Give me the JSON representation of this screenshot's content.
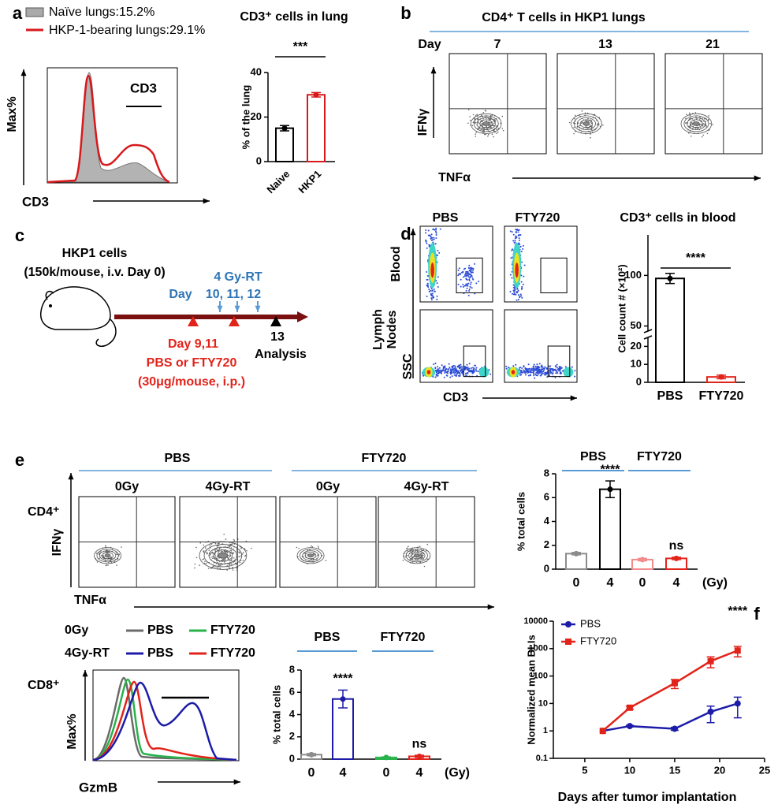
{
  "panel_labels": [
    "a",
    "b",
    "c",
    "d",
    "e",
    "f"
  ],
  "a": {
    "legend": [
      "Naïve lungs:15.2%",
      "HKP-1-bearing lungs:29.1%"
    ],
    "gate": "CD3",
    "ylabel": "Max%",
    "xlabel": "CD3"
  },
  "b": {
    "title": "CD4⁺ T cells in HKP1 lungs",
    "day_label": "Day",
    "days": [
      "7",
      "13",
      "21"
    ],
    "ylabel": "IFNγ",
    "xlabel": "TNFα"
  },
  "c": {
    "cells": "HKP1 cells",
    "cells_detail": "(150k/mouse, i.v. Day 0)",
    "rt": "4 Gy-RT",
    "rt_day": "Day",
    "rt_days": "10, 11, 12",
    "drug_day": "Day  9,11",
    "drug": "PBS or FTY720",
    "drug_detail": "(30μg/mouse, i.p.)",
    "analysis_day": "13",
    "analysis": "Analysis"
  },
  "d": {
    "columns": [
      "PBS",
      "FTY720"
    ],
    "blood": "Blood",
    "lymph_nodes": [
      "Lymph",
      "Nodes"
    ],
    "ylabel": "SSC",
    "xlabel": "CD3"
  },
  "e": {
    "groups": [
      "PBS",
      "FTY720"
    ],
    "conditions": [
      "0Gy",
      "4Gy-RT",
      "0Gy",
      "4Gy-RT"
    ],
    "population": "CD4⁺",
    "ylabel": "IFNγ",
    "xlabel": "TNFα"
  },
  "e2": {
    "legend_rows": [
      "0Gy",
      "4Gy-RT"
    ],
    "legend_entries": [
      [
        "PBS",
        "FTY720"
      ],
      [
        "PBS",
        "FTY720"
      ]
    ],
    "legend_colors": [
      [
        "#6b6b6b",
        "#27b24a"
      ],
      [
        "#1c1ca8",
        "#e2231a"
      ]
    ],
    "population": "CD8⁺",
    "ylabel": "Max%",
    "xlabel": "GzmB"
  },
  "chart_data": [
    {
      "type": "bar",
      "title": "CD3⁺ cells in lung",
      "ylabel": "% of the lung",
      "categories": [
        "Naive",
        "HKP1"
      ],
      "values": [
        15,
        30
      ],
      "errors": [
        1.2,
        1
      ],
      "colors": [
        "#000000",
        "#d7191c"
      ],
      "ylim": [
        0,
        40
      ],
      "yticks": [
        0,
        20,
        40
      ],
      "significance": "***"
    },
    {
      "type": "bar",
      "title": "CD3⁺ cells in blood",
      "ylabel": "Cell count # (×10²)",
      "categories": [
        "PBS",
        "FTY720"
      ],
      "values": [
        97,
        3
      ],
      "errors": [
        5,
        1
      ],
      "colors": [
        "#000000",
        "#e2231a"
      ],
      "ylim": [
        0,
        140
      ],
      "ybreak": [
        25,
        45
      ],
      "yticks": [
        0,
        10,
        20,
        50,
        100
      ],
      "significance": "****"
    },
    {
      "type": "bar",
      "groups": [
        "PBS",
        "FTY720"
      ],
      "ylabel": "% total cells",
      "xlabel": "(Gy)",
      "categories": [
        "0",
        "4",
        "0",
        "4"
      ],
      "values": [
        1.3,
        6.7,
        0.8,
        0.9
      ],
      "errors": [
        0.1,
        0.7,
        0.1,
        0.1
      ],
      "colors": [
        "#8c8c8c",
        "#000000",
        "#f28b8b",
        "#e2231a"
      ],
      "ylim": [
        0,
        8
      ],
      "yticks": [
        0,
        2,
        4,
        6,
        8
      ],
      "annotations": [
        {
          "category": 1,
          "text": "****"
        },
        {
          "category": 3,
          "text": "ns"
        }
      ]
    },
    {
      "type": "bar",
      "groups": [
        "PBS",
        "FTY720"
      ],
      "ylabel": "% total cells",
      "xlabel": "(Gy)",
      "categories": [
        "0",
        "4",
        "0",
        "4"
      ],
      "values": [
        0.4,
        5.4,
        0.15,
        0.25
      ],
      "errors": [
        0.1,
        0.8,
        0.05,
        0.1
      ],
      "colors": [
        "#8c8c8c",
        "#1c1ca8",
        "#27b24a",
        "#e2231a"
      ],
      "ylim": [
        0,
        8
      ],
      "yticks": [
        0,
        2,
        4,
        6,
        8
      ],
      "annotations": [
        {
          "category": 1,
          "text": "****"
        },
        {
          "category": 3,
          "text": "ns"
        }
      ]
    },
    {
      "type": "line",
      "ylabel": "Normalized mean BLIs",
      "xlabel": "Days after tumor implantation",
      "x": [
        7,
        10,
        15,
        19,
        22
      ],
      "series": [
        {
          "name": "PBS",
          "color": "#1c1ca8",
          "marker": "circle",
          "values": [
            1,
            1.5,
            1.2,
            5,
            10
          ],
          "errors": [
            0,
            0.1,
            0.15,
            3,
            7
          ]
        },
        {
          "name": "FTY720",
          "color": "#e2231a",
          "marker": "square",
          "values": [
            1,
            7,
            55,
            350,
            850
          ],
          "errors": [
            0,
            0.8,
            20,
            150,
            350
          ]
        }
      ],
      "xlim": [
        1.5,
        25
      ],
      "xticks": [
        5,
        10,
        15,
        20,
        25
      ],
      "ylim": [
        0.1,
        10000
      ],
      "yticks": [
        0.1,
        1,
        10,
        100,
        1000,
        10000
      ],
      "log_y": true,
      "significance": "****"
    }
  ]
}
